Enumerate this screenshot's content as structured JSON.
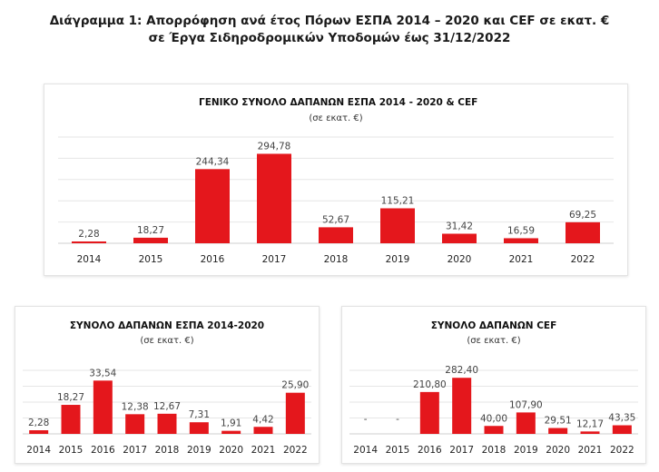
{
  "page_title_line1": "Διάγραμμα 1: Απορρόφηση ανά έτος Πόρων ΕΣΠΑ 2014 – 2020 και CEF σε εκατ. €",
  "page_title_line2": "σε Έργα Σιδηροδρομικών Υποδομών έως 31/12/2022",
  "colors": {
    "bar": "#e4171c",
    "grid": "#e6e6e6",
    "text": "#222222"
  },
  "chart_data": [
    {
      "type": "bar",
      "title": "ΓΕΝΙΚΟ ΣΥΝΟΛΟ ΔΑΠΑΝΩΝ ΕΣΠΑ 2014 - 2020 & CEF",
      "subtitle": "(σε εκατ. €)",
      "categories": [
        "2014",
        "2015",
        "2016",
        "2017",
        "2018",
        "2019",
        "2020",
        "2021",
        "2022"
      ],
      "values": [
        2.28,
        18.27,
        244.34,
        294.78,
        52.67,
        115.21,
        31.42,
        16.59,
        69.25
      ],
      "labels": [
        "2,28",
        "18,27",
        "244,34",
        "294,78",
        "52,67",
        "115,21",
        "31,42",
        "16,59",
        "69,25"
      ],
      "ylim": [
        0,
        350
      ],
      "grid": true
    },
    {
      "type": "bar",
      "title": "ΣΥΝΟΛΟ ΔΑΠΑΝΩΝ ΕΣΠΑ 2014-2020",
      "subtitle": "(σε εκατ. €)",
      "categories": [
        "2014",
        "2015",
        "2016",
        "2017",
        "2018",
        "2019",
        "2020",
        "2021",
        "2022"
      ],
      "values": [
        2.28,
        18.27,
        33.54,
        12.38,
        12.67,
        7.31,
        1.91,
        4.42,
        25.9
      ],
      "labels": [
        "2,28",
        "18,27",
        "33,54",
        "12,38",
        "12,67",
        "7,31",
        "1,91",
        "4,42",
        "25,90"
      ],
      "ylim": [
        0,
        40
      ],
      "grid": true
    },
    {
      "type": "bar",
      "title": "ΣΥΝΟΛΟ ΔΑΠΑΝΩΝ CEF",
      "subtitle": "(σε εκατ. €)",
      "categories": [
        "2014",
        "2015",
        "2016",
        "2017",
        "2018",
        "2019",
        "2020",
        "2021",
        "2022"
      ],
      "values": [
        null,
        null,
        210.8,
        282.4,
        40.0,
        107.9,
        29.51,
        12.17,
        43.35
      ],
      "labels": [
        "-",
        "-",
        "210,80",
        "282,40",
        "40,00",
        "107,90",
        "29,51",
        "12,17",
        "43,35"
      ],
      "ylim": [
        0,
        320
      ],
      "grid": true
    }
  ]
}
